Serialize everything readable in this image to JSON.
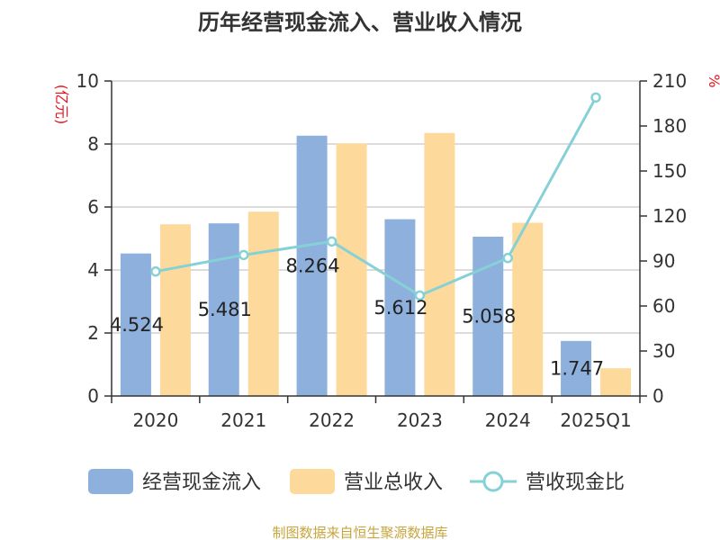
{
  "chart_data": {
    "type": "bar",
    "title": "历年经营现金流入、营业收入情况",
    "categories": [
      "2020",
      "2021",
      "2022",
      "2023",
      "2024",
      "2025Q1"
    ],
    "series": [
      {
        "name": "经营现金流入",
        "kind": "bar",
        "axis": "left",
        "color": "#8eb0dc",
        "values": [
          4.524,
          5.481,
          8.264,
          5.612,
          5.058,
          1.747
        ]
      },
      {
        "name": "营业总收入",
        "kind": "bar",
        "axis": "left",
        "color": "#fdd99b",
        "values": [
          5.45,
          5.85,
          8.02,
          8.35,
          5.5,
          0.88
        ]
      },
      {
        "name": "营收现金比",
        "kind": "line",
        "axis": "right",
        "color": "#86d1d6",
        "values": [
          83,
          94,
          103,
          67,
          92,
          199
        ]
      }
    ],
    "bar_labels": [
      "4.524",
      "5.481",
      "8.264",
      "5.612",
      "5.058",
      "1.747"
    ],
    "y_left": {
      "unit": "(亿元)",
      "min": 0,
      "max": 10,
      "ticks": [
        0,
        2,
        4,
        6,
        8,
        10
      ],
      "unit_color": "#e8141c"
    },
    "y_right": {
      "unit": "%",
      "min": 0,
      "max": 210,
      "ticks": [
        0,
        30,
        60,
        90,
        120,
        150,
        180,
        210
      ],
      "unit_color": "#e8141c"
    },
    "grid": true,
    "legend_position": "bottom"
  },
  "legend": {
    "items": [
      {
        "label": "经营现金流入"
      },
      {
        "label": "营业总收入"
      },
      {
        "label": "营收现金比"
      }
    ]
  },
  "source": {
    "text": "制图数据来自恒生聚源数据库",
    "color": "#c8a53d"
  }
}
